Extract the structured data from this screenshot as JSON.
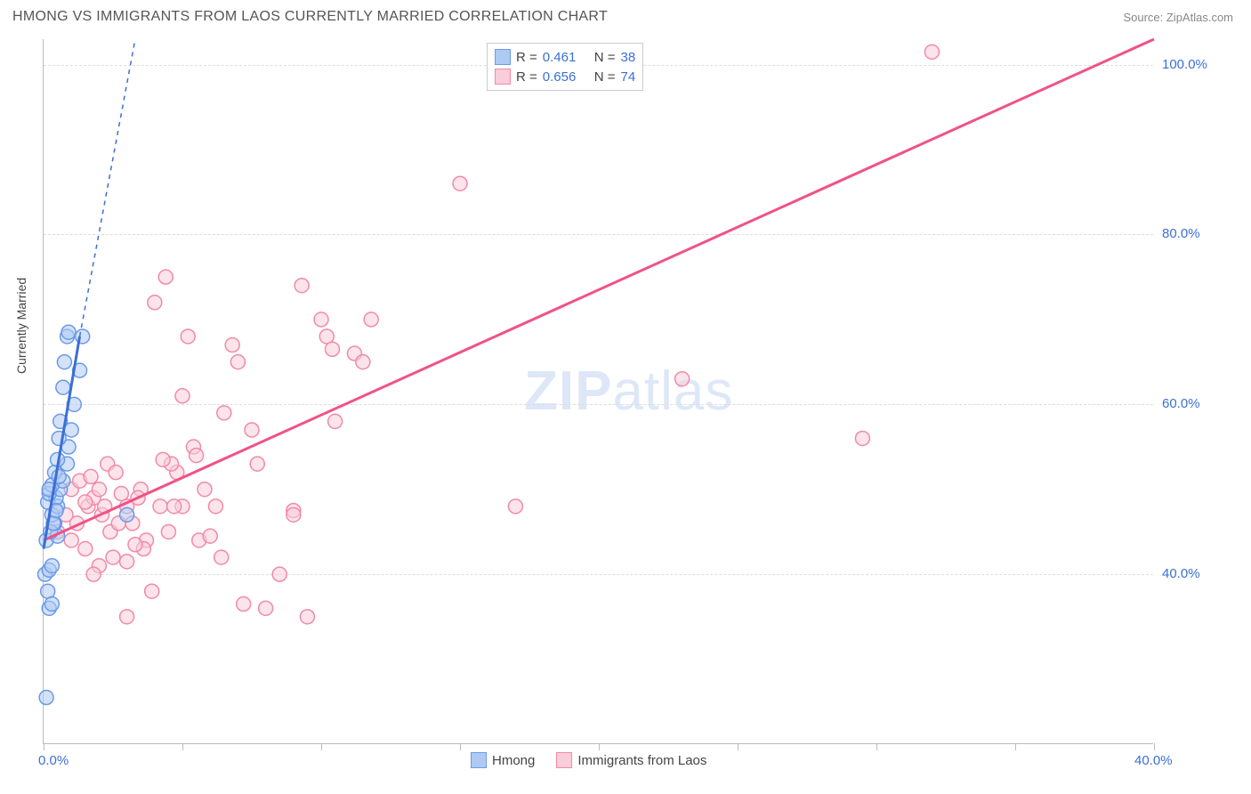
{
  "title": "HMONG VS IMMIGRANTS FROM LAOS CURRENTLY MARRIED CORRELATION CHART",
  "source": "Source: ZipAtlas.com",
  "watermark_bold": "ZIP",
  "watermark_light": "atlas",
  "y_axis_label": "Currently Married",
  "x_range": [
    0,
    40
  ],
  "y_range": [
    20,
    103
  ],
  "x_ticks": [
    0,
    5,
    10,
    15,
    20,
    25,
    30,
    35,
    40
  ],
  "y_gridlines": [
    40,
    60,
    80,
    100
  ],
  "y_tick_labels": [
    "40.0%",
    "60.0%",
    "80.0%",
    "100.0%"
  ],
  "x_tick_labels": {
    "0": "0.0%",
    "40": "40.0%"
  },
  "colors": {
    "blue_stroke": "#6a9ae8",
    "blue_fill": "#aecaf2",
    "blue_line": "#3b6fd6",
    "pink_stroke": "#f08aa8",
    "pink_fill": "#f9cdd9",
    "pink_line": "#f15286",
    "grid": "#dddddd",
    "axis": "#bbbbbb",
    "text_dark": "#444444",
    "value_blue": "#3b6fd6"
  },
  "legend_top": [
    {
      "swatch": "blue",
      "r_label": "R =",
      "r_value": "0.461",
      "n_label": "N =",
      "n_value": "38"
    },
    {
      "swatch": "pink",
      "r_label": "R =",
      "r_value": "0.656",
      "n_label": "N =",
      "n_value": "74"
    }
  ],
  "legend_bottom": [
    {
      "swatch": "blue",
      "label": "Hmong"
    },
    {
      "swatch": "pink",
      "label": "Immigrants from Laos"
    }
  ],
  "marker_radius": 8,
  "marker_opacity": 0.55,
  "series_blue": {
    "points": [
      [
        0.1,
        25.5
      ],
      [
        0.2,
        36
      ],
      [
        0.15,
        38
      ],
      [
        0.05,
        40
      ],
      [
        0.2,
        40.5
      ],
      [
        0.3,
        41
      ],
      [
        0.1,
        44
      ],
      [
        0.4,
        46
      ],
      [
        0.3,
        47
      ],
      [
        0.5,
        48
      ],
      [
        0.15,
        48.5
      ],
      [
        0.45,
        49
      ],
      [
        0.2,
        49.5
      ],
      [
        0.6,
        50
      ],
      [
        0.3,
        50.5
      ],
      [
        0.7,
        51
      ],
      [
        0.4,
        52
      ],
      [
        0.85,
        53
      ],
      [
        0.5,
        53.5
      ],
      [
        0.9,
        55
      ],
      [
        0.55,
        56
      ],
      [
        1.0,
        57
      ],
      [
        0.6,
        58
      ],
      [
        1.1,
        60
      ],
      [
        0.7,
        62
      ],
      [
        1.3,
        64
      ],
      [
        0.75,
        65
      ],
      [
        0.85,
        68
      ],
      [
        0.9,
        68.5
      ],
      [
        1.4,
        68
      ],
      [
        3.0,
        47
      ],
      [
        0.5,
        44.5
      ],
      [
        0.25,
        45
      ],
      [
        0.35,
        46
      ],
      [
        0.3,
        36.5
      ],
      [
        0.45,
        47.5
      ],
      [
        0.2,
        50
      ],
      [
        0.55,
        51.5
      ]
    ],
    "trend_solid": {
      "x1": 0,
      "y1": 43,
      "x2": 1.3,
      "y2": 68
    },
    "trend_dashed": {
      "x1": 1.3,
      "y1": 68,
      "x2": 3.3,
      "y2": 103
    }
  },
  "series_pink": {
    "points": [
      [
        0.5,
        45
      ],
      [
        1.0,
        44
      ],
      [
        1.2,
        46
      ],
      [
        1.5,
        43
      ],
      [
        1.6,
        48
      ],
      [
        1.8,
        49
      ],
      [
        2.0,
        50
      ],
      [
        2.1,
        47
      ],
      [
        2.3,
        53
      ],
      [
        2.4,
        45
      ],
      [
        2.5,
        42
      ],
      [
        2.8,
        49.5
      ],
      [
        3.0,
        48
      ],
      [
        3.2,
        46
      ],
      [
        3.5,
        50
      ],
      [
        3.7,
        44
      ],
      [
        1.0,
        50
      ],
      [
        1.3,
        51
      ],
      [
        1.7,
        51.5
      ],
      [
        2.6,
        52
      ],
      [
        2.2,
        48
      ],
      [
        3.0,
        41.5
      ],
      [
        3.4,
        49
      ],
      [
        0.8,
        47
      ],
      [
        1.5,
        48.5
      ],
      [
        4.2,
        48
      ],
      [
        4.5,
        45
      ],
      [
        4.8,
        52
      ],
      [
        5.0,
        48
      ],
      [
        5.4,
        55
      ],
      [
        5.6,
        44
      ],
      [
        5.8,
        50
      ],
      [
        6.0,
        44.5
      ],
      [
        6.2,
        48
      ],
      [
        6.4,
        42
      ],
      [
        6.8,
        67
      ],
      [
        7.0,
        65
      ],
      [
        7.2,
        36.5
      ],
      [
        7.5,
        57
      ],
      [
        7.7,
        53
      ],
      [
        8.0,
        36
      ],
      [
        8.5,
        40
      ],
      [
        4.0,
        72
      ],
      [
        4.4,
        75
      ],
      [
        4.6,
        53
      ],
      [
        5.2,
        68
      ],
      [
        9.0,
        47.5
      ],
      [
        9.0,
        47
      ],
      [
        9.3,
        74
      ],
      [
        9.5,
        35
      ],
      [
        10.0,
        70
      ],
      [
        10.2,
        68
      ],
      [
        10.4,
        66.5
      ],
      [
        10.5,
        58
      ],
      [
        11.2,
        66
      ],
      [
        11.5,
        65
      ],
      [
        11.8,
        70
      ],
      [
        15.0,
        86
      ],
      [
        17.0,
        48
      ],
      [
        3.0,
        35
      ],
      [
        3.6,
        43
      ],
      [
        5.0,
        61
      ],
      [
        5.5,
        54
      ],
      [
        2.0,
        41
      ],
      [
        1.8,
        40
      ],
      [
        2.7,
        46
      ],
      [
        3.3,
        43.5
      ],
      [
        6.5,
        59
      ],
      [
        4.3,
        53.5
      ],
      [
        4.7,
        48
      ],
      [
        23.0,
        63
      ],
      [
        29.5,
        56
      ],
      [
        32.0,
        101.5
      ],
      [
        3.9,
        38
      ]
    ],
    "trend_solid": {
      "x1": 0,
      "y1": 44,
      "x2": 40,
      "y2": 103
    }
  }
}
